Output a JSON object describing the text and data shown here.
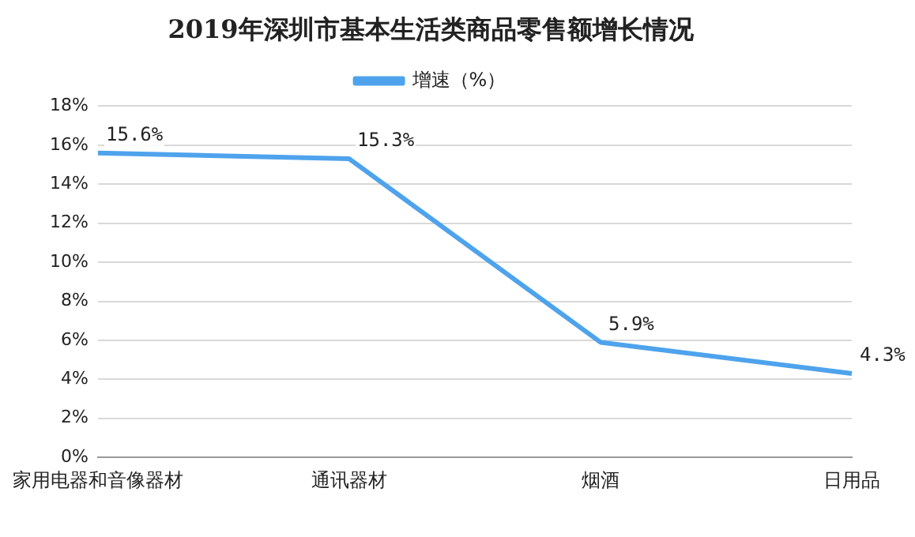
{
  "chart_data": {
    "type": "line",
    "title": "2019年深圳市基本生活类商品零售额增长情况",
    "categories": [
      "家用电器和音像器材",
      "通讯器材",
      "烟酒",
      "日用品"
    ],
    "series": [
      {
        "name": "增速（%）",
        "color": "#4ea3ec",
        "values": [
          15.6,
          15.3,
          5.9,
          4.3
        ],
        "value_labels": [
          "15.6%",
          "15.3%",
          "5.9%",
          "4.3%"
        ]
      }
    ],
    "ylim": [
      0,
      18
    ],
    "yticks": [
      {
        "value": 0,
        "label": "0%"
      },
      {
        "value": 2,
        "label": "2%"
      },
      {
        "value": 4,
        "label": "4%"
      },
      {
        "value": 6,
        "label": "6%"
      },
      {
        "value": 8,
        "label": "8%"
      },
      {
        "value": 10,
        "label": "10%"
      },
      {
        "value": 12,
        "label": "12%"
      },
      {
        "value": 14,
        "label": "14%"
      },
      {
        "value": 16,
        "label": "16%"
      },
      {
        "value": 18,
        "label": "18%"
      }
    ],
    "grid": "y",
    "legend": "top",
    "marker": "none",
    "line_style": "solid"
  }
}
